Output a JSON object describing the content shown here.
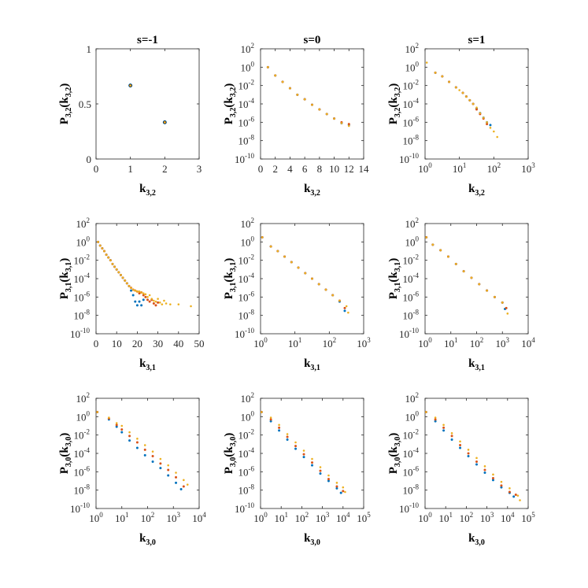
{
  "colors": {
    "series1": "#0072bd",
    "series2": "#d95319",
    "series3": "#edb120"
  },
  "chart_data": [
    {
      "title": "s=-1",
      "type": "scatter",
      "xscale": "linear",
      "yscale": "linear",
      "xlim": [
        0,
        3
      ],
      "ylim": [
        0,
        1
      ],
      "xticks": [
        "0",
        "1",
        "2",
        "3"
      ],
      "yticks": [
        "0",
        "0.5",
        "1"
      ],
      "xlabel": "k",
      "xlabel_sub": "3,2",
      "ylabel": "P",
      "ylabel_sub": "3,2",
      "ylabel_arg": "k",
      "ylabel_arg_sub": "3,2",
      "series": [
        {
          "x": [
            1,
            2
          ],
          "y": [
            0.667,
            0.333
          ]
        },
        {
          "x": [
            1,
            2
          ],
          "y": [
            0.667,
            0.333
          ]
        },
        {
          "x": [
            1,
            2
          ],
          "y": [
            0.667,
            0.333
          ]
        }
      ]
    },
    {
      "title": "s=0",
      "type": "scatter",
      "xscale": "linear",
      "yscale": "log",
      "xlim": [
        0,
        14
      ],
      "ylim": [
        -10,
        2
      ],
      "xticks": [
        "0",
        "2",
        "4",
        "6",
        "8",
        "10",
        "12",
        "14"
      ],
      "yticks": [
        "-10",
        "-8",
        "-6",
        "-4",
        "-2",
        "0",
        "2"
      ],
      "xlabel": "k",
      "xlabel_sub": "3,2",
      "ylabel": "P",
      "ylabel_sub": "3,2",
      "ylabel_arg": "k",
      "ylabel_arg_sub": "3,2",
      "series": [
        {
          "x": [
            1,
            2,
            3,
            4,
            5,
            6,
            7,
            8,
            9,
            10,
            11,
            12
          ],
          "y": [
            0,
            -0.9,
            -1.6,
            -2.3,
            -3.0,
            -3.5,
            -4.1,
            -4.6,
            -5.1,
            -5.6,
            -6.1,
            -6.3
          ]
        },
        {
          "x": [
            1,
            2,
            3,
            4,
            5,
            6,
            7,
            8,
            9,
            10,
            11,
            12
          ],
          "y": [
            0,
            -0.9,
            -1.6,
            -2.3,
            -3.0,
            -3.5,
            -4.1,
            -4.6,
            -5.1,
            -5.6,
            -6.0,
            -6.2
          ]
        },
        {
          "x": [
            1,
            2,
            3,
            4,
            5,
            6,
            7,
            8,
            9,
            10,
            11,
            12
          ],
          "y": [
            0,
            -0.9,
            -1.6,
            -2.3,
            -3.0,
            -3.5,
            -4.1,
            -4.6,
            -5.1,
            -5.6,
            -6.1,
            -6.4
          ]
        }
      ]
    },
    {
      "title": "s=1",
      "type": "scatter",
      "xscale": "log",
      "yscale": "log",
      "xlim": [
        0,
        3
      ],
      "ylim": [
        -10,
        2
      ],
      "xticks": [
        "0",
        "1",
        "2",
        "3"
      ],
      "yticks": [
        "-10",
        "-8",
        "-6",
        "-4",
        "-2",
        "0",
        "2"
      ],
      "xlabel": "k",
      "xlabel_sub": "3,2",
      "ylabel": "P",
      "ylabel_sub": "3,2",
      "ylabel_arg": "k",
      "ylabel_arg_sub": "3,2",
      "series": [
        {
          "x": [
            0.3,
            0.5,
            0.7,
            0.9,
            1.1,
            1.2,
            1.3,
            1.4,
            1.5,
            1.6,
            1.7,
            1.8,
            1.9
          ],
          "y": [
            -0.6,
            -1.0,
            -1.6,
            -2.2,
            -2.8,
            -3.2,
            -3.6,
            -4.0,
            -4.5,
            -5.0,
            -5.5,
            -6.0,
            -6.3
          ]
        },
        {
          "x": [
            0.3,
            0.5,
            0.7,
            0.9,
            1.1,
            1.2,
            1.3,
            1.4,
            1.5,
            1.6,
            1.7,
            1.8
          ],
          "y": [
            -0.6,
            -1.0,
            -1.6,
            -2.2,
            -2.8,
            -3.2,
            -3.6,
            -4.0,
            -4.6,
            -5.1,
            -5.6,
            -6.2
          ]
        },
        {
          "x": [
            0.05,
            0.3,
            0.5,
            0.7,
            0.9,
            1.0,
            1.1,
            1.2,
            1.3,
            1.4,
            1.5,
            1.6,
            1.7,
            1.8,
            1.9,
            2.0,
            2.1
          ],
          "y": [
            0.5,
            -0.6,
            -1.0,
            -1.6,
            -2.2,
            -2.5,
            -2.8,
            -3.2,
            -3.6,
            -4.0,
            -4.4,
            -5.0,
            -5.5,
            -6.0,
            -6.6,
            -7.0,
            -7.6
          ]
        }
      ]
    },
    {
      "title": "",
      "type": "scatter",
      "xscale": "linear",
      "yscale": "log",
      "xlim": [
        0,
        50
      ],
      "ylim": [
        -10,
        2
      ],
      "xticks": [
        "0",
        "10",
        "20",
        "30",
        "40",
        "50"
      ],
      "yticks": [
        "-10",
        "-8",
        "-6",
        "-4",
        "-2",
        "0",
        "2"
      ],
      "xlabel": "k",
      "xlabel_sub": "3,1",
      "ylabel": "P",
      "ylabel_sub": "3,1",
      "ylabel_arg": "k",
      "ylabel_arg_sub": "3,1",
      "series": [
        {
          "x": [
            1,
            2,
            3,
            4,
            5,
            6,
            7,
            8,
            9,
            10,
            11,
            12,
            13,
            14,
            15,
            16,
            17,
            18,
            19,
            20,
            21,
            22,
            23
          ],
          "y": [
            0,
            -0.4,
            -0.7,
            -1.0,
            -1.4,
            -1.7,
            -2.0,
            -2.4,
            -2.7,
            -3.0,
            -3.3,
            -3.6,
            -3.9,
            -4.2,
            -4.5,
            -4.8,
            -5.3,
            -5.8,
            -6.5,
            -6.9,
            -6.5,
            -6.9,
            -6.3
          ]
        },
        {
          "x": [
            1,
            2,
            3,
            4,
            5,
            6,
            7,
            8,
            9,
            10,
            11,
            12,
            13,
            14,
            15,
            16,
            17,
            18,
            19,
            20,
            21,
            22,
            23,
            24,
            25,
            26,
            27,
            28,
            29,
            30
          ],
          "y": [
            0,
            -0.4,
            -0.7,
            -1.0,
            -1.4,
            -1.7,
            -2.0,
            -2.4,
            -2.7,
            -3.0,
            -3.3,
            -3.6,
            -3.9,
            -4.2,
            -4.5,
            -4.8,
            -5.0,
            -5.2,
            -5.3,
            -5.4,
            -5.6,
            -5.5,
            -5.8,
            -6.0,
            -6.3,
            -6.5,
            -6.3,
            -6.7,
            -6.9,
            -6.6
          ]
        },
        {
          "x": [
            1,
            2,
            3,
            4,
            5,
            6,
            7,
            8,
            9,
            10,
            11,
            12,
            13,
            14,
            15,
            16,
            17,
            18,
            19,
            20,
            21,
            22,
            23,
            24,
            25,
            26,
            27,
            28,
            29,
            30,
            31,
            32,
            33,
            34,
            36,
            40,
            46
          ],
          "y": [
            0,
            -0.4,
            -0.7,
            -1.0,
            -1.4,
            -1.7,
            -2.0,
            -2.4,
            -2.7,
            -3.0,
            -3.3,
            -3.6,
            -3.9,
            -4.2,
            -4.5,
            -4.8,
            -5.0,
            -5.2,
            -5.3,
            -5.4,
            -5.4,
            -5.5,
            -5.6,
            -5.7,
            -6.0,
            -5.8,
            -6.2,
            -6.4,
            -6.5,
            -6.2,
            -6.6,
            -6.8,
            -6.4,
            -6.7,
            -6.8,
            -6.8,
            -7.0
          ]
        }
      ]
    },
    {
      "title": "",
      "type": "scatter",
      "xscale": "log",
      "yscale": "log",
      "xlim": [
        0,
        3
      ],
      "ylim": [
        -10,
        2
      ],
      "xticks": [
        "0",
        "1",
        "2",
        "3"
      ],
      "yticks": [
        "-10",
        "-8",
        "-6",
        "-4",
        "-2",
        "0",
        "2"
      ],
      "xlabel": "k",
      "xlabel_sub": "3,1",
      "ylabel": "P",
      "ylabel_sub": "3,1",
      "ylabel_arg": "k",
      "ylabel_arg_sub": "3,1",
      "series": [
        {
          "x": [
            0.05,
            0.3,
            0.5,
            0.7,
            0.9,
            1.1,
            1.3,
            1.5,
            1.7,
            1.9,
            2.1,
            2.3,
            2.45
          ],
          "y": [
            0.5,
            -0.5,
            -1.0,
            -1.6,
            -2.2,
            -2.8,
            -3.4,
            -4.0,
            -4.6,
            -5.2,
            -5.8,
            -6.5,
            -7.5
          ]
        },
        {
          "x": [
            0.05,
            0.3,
            0.5,
            0.7,
            0.9,
            1.1,
            1.3,
            1.5,
            1.7,
            1.9,
            2.1,
            2.3,
            2.45
          ],
          "y": [
            0.5,
            -0.5,
            -1.0,
            -1.6,
            -2.2,
            -2.8,
            -3.4,
            -4.0,
            -4.6,
            -5.2,
            -5.8,
            -6.4,
            -7.2
          ]
        },
        {
          "x": [
            0.05,
            0.3,
            0.5,
            0.7,
            0.9,
            1.1,
            1.3,
            1.5,
            1.7,
            1.9,
            2.1,
            2.3,
            2.5,
            2.55
          ],
          "y": [
            0.5,
            -0.5,
            -1.0,
            -1.6,
            -2.2,
            -2.8,
            -3.4,
            -4.0,
            -4.6,
            -5.2,
            -5.8,
            -6.4,
            -7.0,
            -7.7
          ]
        }
      ]
    },
    {
      "title": "",
      "type": "scatter",
      "xscale": "log",
      "yscale": "log",
      "xlim": [
        0,
        4
      ],
      "ylim": [
        -10,
        2
      ],
      "xticks": [
        "0",
        "1",
        "2",
        "3",
        "4"
      ],
      "yticks": [
        "-10",
        "-8",
        "-6",
        "-4",
        "-2",
        "0",
        "2"
      ],
      "xlabel": "k",
      "xlabel_sub": "3,1",
      "ylabel": "P",
      "ylabel_sub": "3,1",
      "ylabel_arg": "k",
      "ylabel_arg_sub": "3,1",
      "series": [
        {
          "x": [
            0.05,
            0.3,
            0.6,
            0.9,
            1.2,
            1.5,
            1.8,
            2.1,
            2.4,
            2.7,
            3.0,
            3.1
          ],
          "y": [
            0.5,
            -0.3,
            -0.9,
            -1.6,
            -2.4,
            -3.2,
            -3.9,
            -4.6,
            -5.3,
            -6.0,
            -6.6,
            -7.3
          ]
        },
        {
          "x": [
            0.05,
            0.3,
            0.6,
            0.9,
            1.2,
            1.5,
            1.8,
            2.1,
            2.4,
            2.7,
            3.0,
            3.15
          ],
          "y": [
            0.5,
            -0.3,
            -0.9,
            -1.6,
            -2.4,
            -3.2,
            -3.9,
            -4.6,
            -5.3,
            -6.0,
            -6.6,
            -7.2
          ]
        },
        {
          "x": [
            0.05,
            0.3,
            0.6,
            0.9,
            1.2,
            1.5,
            1.8,
            2.1,
            2.4,
            2.7,
            3.0,
            3.2
          ],
          "y": [
            0.5,
            -0.3,
            -0.9,
            -1.6,
            -2.4,
            -3.2,
            -3.9,
            -4.6,
            -5.3,
            -6.0,
            -6.6,
            -7.8
          ]
        }
      ]
    },
    {
      "title": "",
      "type": "scatter",
      "xscale": "log",
      "yscale": "log",
      "xlim": [
        0,
        4
      ],
      "ylim": [
        -10,
        2
      ],
      "xticks": [
        "0",
        "1",
        "2",
        "3",
        "4"
      ],
      "yticks": [
        "-10",
        "-8",
        "-6",
        "-4",
        "-2",
        "0",
        "2"
      ],
      "xlabel": "k",
      "xlabel_sub": "3,0",
      "ylabel": "P",
      "ylabel_sub": "3,0",
      "ylabel_arg": "k",
      "ylabel_arg_sub": "3,0",
      "series": [
        {
          "x": [
            0.05,
            0.5,
            0.8,
            1.0,
            1.3,
            1.6,
            1.9,
            2.2,
            2.5,
            2.8,
            3.1,
            3.3
          ],
          "y": [
            0.5,
            -0.3,
            -1.1,
            -1.7,
            -2.6,
            -3.4,
            -4.2,
            -4.9,
            -5.6,
            -6.4,
            -7.2,
            -7.9
          ]
        },
        {
          "x": [
            0.05,
            0.5,
            0.8,
            1.0,
            1.3,
            1.6,
            1.9,
            2.2,
            2.5,
            2.8,
            3.1,
            3.4
          ],
          "y": [
            0.5,
            -0.2,
            -0.9,
            -1.4,
            -2.1,
            -2.8,
            -3.6,
            -4.3,
            -5.1,
            -5.8,
            -6.6,
            -7.6
          ]
        },
        {
          "x": [
            0.05,
            0.5,
            0.8,
            1.0,
            1.3,
            1.6,
            1.9,
            2.2,
            2.5,
            2.8,
            3.1,
            3.4,
            3.55
          ],
          "y": [
            0.5,
            -0.1,
            -0.7,
            -1.0,
            -1.7,
            -2.4,
            -3.1,
            -3.8,
            -4.6,
            -5.3,
            -6.1,
            -6.9,
            -7.4
          ]
        }
      ]
    },
    {
      "title": "",
      "type": "scatter",
      "xscale": "log",
      "yscale": "log",
      "xlim": [
        0,
        5
      ],
      "ylim": [
        -10,
        2
      ],
      "xticks": [
        "0",
        "1",
        "2",
        "3",
        "4",
        "5"
      ],
      "yticks": [
        "-10",
        "-8",
        "-6",
        "-4",
        "-2",
        "0",
        "2"
      ],
      "xlabel": "k",
      "xlabel_sub": "3,0",
      "ylabel": "P",
      "ylabel_sub": "3,0",
      "ylabel_arg": "k",
      "ylabel_arg_sub": "3,0",
      "series": [
        {
          "x": [
            0.05,
            0.5,
            0.9,
            1.3,
            1.7,
            2.1,
            2.5,
            2.9,
            3.3,
            3.7,
            3.9
          ],
          "y": [
            0.5,
            -0.5,
            -1.5,
            -2.5,
            -3.5,
            -4.4,
            -5.3,
            -6.2,
            -7.0,
            -7.8,
            -8.3
          ]
        },
        {
          "x": [
            0.05,
            0.5,
            0.9,
            1.3,
            1.7,
            2.1,
            2.5,
            2.9,
            3.3,
            3.7,
            4.0
          ],
          "y": [
            0.5,
            -0.3,
            -1.2,
            -2.2,
            -3.2,
            -4.1,
            -5.0,
            -5.9,
            -6.8,
            -7.6,
            -8.1
          ]
        },
        {
          "x": [
            0.05,
            0.5,
            0.9,
            1.3,
            1.7,
            2.1,
            2.5,
            2.9,
            3.3,
            3.7,
            4.0,
            4.1
          ],
          "y": [
            0.5,
            -0.1,
            -0.9,
            -1.9,
            -2.8,
            -3.7,
            -4.6,
            -5.5,
            -6.4,
            -7.2,
            -7.7,
            -8.2
          ]
        }
      ]
    },
    {
      "title": "",
      "type": "scatter",
      "xscale": "log",
      "yscale": "log",
      "xlim": [
        0,
        5
      ],
      "ylim": [
        -10,
        2
      ],
      "xticks": [
        "0",
        "1",
        "2",
        "3",
        "4",
        "5"
      ],
      "yticks": [
        "-10",
        "-8",
        "-6",
        "-4",
        "-2",
        "0",
        "2"
      ],
      "xlabel": "k",
      "xlabel_sub": "3,0",
      "ylabel": "P",
      "ylabel_sub": "3,0",
      "ylabel_arg": "k",
      "ylabel_arg_sub": "3,0",
      "series": [
        {
          "x": [
            0.05,
            0.5,
            0.9,
            1.3,
            1.7,
            2.1,
            2.5,
            2.9,
            3.3,
            3.7,
            4.1,
            4.3
          ],
          "y": [
            0.5,
            -0.5,
            -1.5,
            -2.5,
            -3.4,
            -4.3,
            -5.2,
            -6.1,
            -6.9,
            -7.7,
            -8.3,
            -8.7
          ]
        },
        {
          "x": [
            0.05,
            0.5,
            0.9,
            1.3,
            1.7,
            2.1,
            2.5,
            2.9,
            3.3,
            3.7,
            4.1,
            4.4
          ],
          "y": [
            0.5,
            -0.3,
            -1.2,
            -2.1,
            -3.1,
            -4.0,
            -4.9,
            -5.8,
            -6.7,
            -7.5,
            -8.2,
            -8.5
          ]
        },
        {
          "x": [
            0.05,
            0.5,
            0.9,
            1.3,
            1.7,
            2.1,
            2.5,
            2.9,
            3.3,
            3.7,
            4.1,
            4.5,
            4.6
          ],
          "y": [
            0.5,
            -0.1,
            -0.9,
            -1.8,
            -2.7,
            -3.6,
            -4.5,
            -5.4,
            -6.3,
            -7.1,
            -7.8,
            -8.6,
            -9.1
          ]
        }
      ]
    }
  ]
}
